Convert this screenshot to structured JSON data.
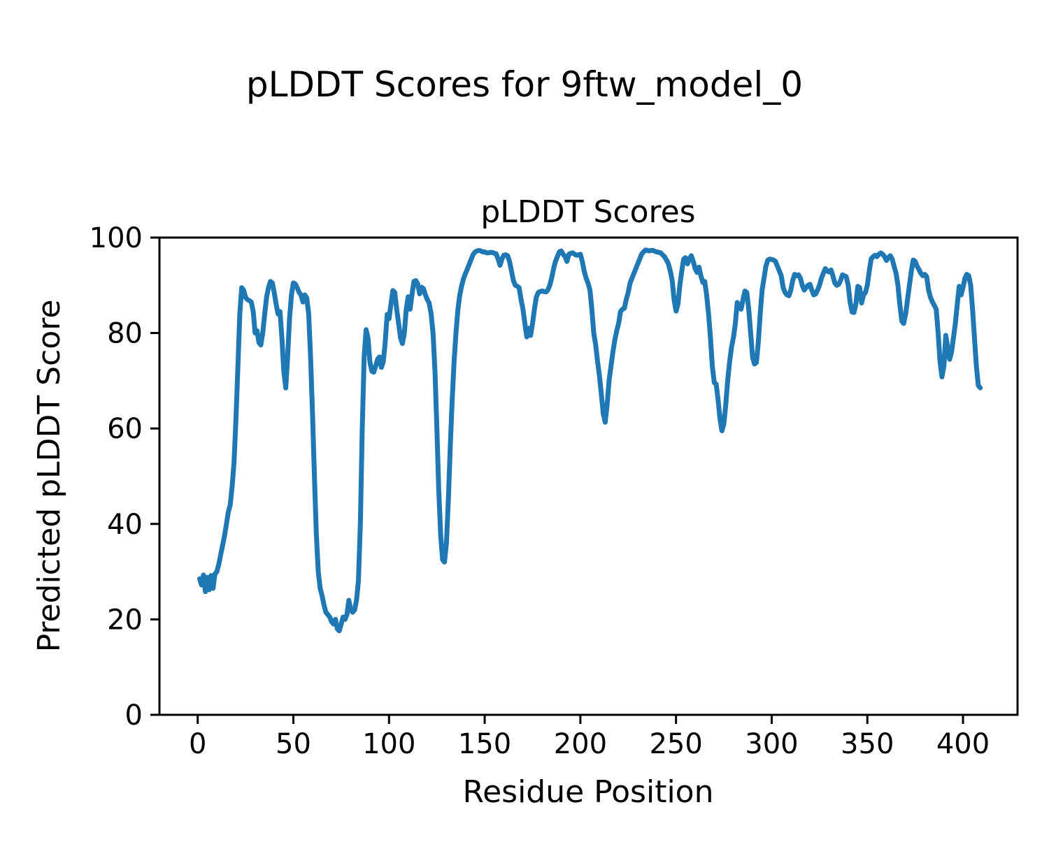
{
  "figure": {
    "title": "pLDDT Scores for 9ftw_model_0"
  },
  "chart_data": {
    "type": "line",
    "title": "pLDDT Scores",
    "xlabel": "Residue Position",
    "ylabel": "Predicted pLDDT Score",
    "xlim": [
      -20,
      428.5
    ],
    "ylim": [
      0,
      100
    ],
    "xticks": [
      0,
      50,
      100,
      150,
      200,
      250,
      300,
      350,
      400
    ],
    "yticks": [
      0,
      20,
      40,
      60,
      80,
      100
    ],
    "grid": false,
    "legend": "none",
    "line_color": "#1f77b4",
    "series": [
      {
        "name": "pLDDT",
        "x_start": 1,
        "x_step": 1,
        "y": [
          28.5,
          27.2,
          29.3,
          25.8,
          28.8,
          26.2,
          29.2,
          26.5,
          29.5,
          30.0,
          31.5,
          33.5,
          35.5,
          37.5,
          40.0,
          42.5,
          44.0,
          48.0,
          53.0,
          62.0,
          73.0,
          84.0,
          89.5,
          89.0,
          87.5,
          87.0,
          86.8,
          86.5,
          84.5,
          80.0,
          80.5,
          78.0,
          77.5,
          80.0,
          84.0,
          87.5,
          89.5,
          90.8,
          90.5,
          88.5,
          86.0,
          84.0,
          84.5,
          79.0,
          72.0,
          68.5,
          75.0,
          83.0,
          88.0,
          90.5,
          90.3,
          89.5,
          88.5,
          88.0,
          86.5,
          88.0,
          87.3,
          84.0,
          75.0,
          63.0,
          50.0,
          38.0,
          30.0,
          26.5,
          25.0,
          23.0,
          21.5,
          21.0,
          20.5,
          19.5,
          19.0,
          20.0,
          18.0,
          17.6,
          19.0,
          20.5,
          20.0,
          21.0,
          24.0,
          22.0,
          21.5,
          22.0,
          24.0,
          28.0,
          40.0,
          60.0,
          75.0,
          80.7,
          79.0,
          74.0,
          72.0,
          71.8,
          73.0,
          74.5,
          75.0,
          72.8,
          74.0,
          78.0,
          83.9,
          83.0,
          86.0,
          88.9,
          88.5,
          85.0,
          82.0,
          79.0,
          77.8,
          80.0,
          85.0,
          87.6,
          85.0,
          88.0,
          90.8,
          91.0,
          90.3,
          88.2,
          89.6,
          89.3,
          88.0,
          87.0,
          86.3,
          84.0,
          80.0,
          72.0,
          60.0,
          47.0,
          37.5,
          32.5,
          32.0,
          36.0,
          45.0,
          56.0,
          66.0,
          74.0,
          80.0,
          85.0,
          88.0,
          90.0,
          91.5,
          92.5,
          93.5,
          94.5,
          95.5,
          96.5,
          97.0,
          97.2,
          97.3,
          97.2,
          97.0,
          97.0,
          96.8,
          96.8,
          96.9,
          96.9,
          96.7,
          96.6,
          95.5,
          94.2,
          95.5,
          96.3,
          96.4,
          96.2,
          95.0,
          93.0,
          91.0,
          90.0,
          89.8,
          89.5,
          87.0,
          85.0,
          82.0,
          79.2,
          81.0,
          79.5,
          82.0,
          85.0,
          87.5,
          88.5,
          88.7,
          88.8,
          88.7,
          88.6,
          89.0,
          90.0,
          91.5,
          93.5,
          95.0,
          96.0,
          97.0,
          97.2,
          96.5,
          96.0,
          95.0,
          96.5,
          96.7,
          96.8,
          96.5,
          96.3,
          96.4,
          96.5,
          95.0,
          93.0,
          91.5,
          90.5,
          89.0,
          85.0,
          80.0,
          77.5,
          74.0,
          71.0,
          67.0,
          63.0,
          61.3,
          65.0,
          70.0,
          73.0,
          76.0,
          78.5,
          80.5,
          82.0,
          84.5,
          85.0,
          85.2,
          87.0,
          88.5,
          90.5,
          91.5,
          92.5,
          93.5,
          94.5,
          95.5,
          96.5,
          97.0,
          97.4,
          97.3,
          97.2,
          97.3,
          97.3,
          97.1,
          97.0,
          96.9,
          96.8,
          96.4,
          96.0,
          95.3,
          94.5,
          93.0,
          91.0,
          87.0,
          84.6,
          86.0,
          90.0,
          93.0,
          95.5,
          95.8,
          94.5,
          95.5,
          96.2,
          95.0,
          93.5,
          92.7,
          93.8,
          92.0,
          90.6,
          90.8,
          88.0,
          84.0,
          79.0,
          73.0,
          69.6,
          69.3,
          66.0,
          62.0,
          59.5,
          61.0,
          65.0,
          70.0,
          74.0,
          77.0,
          79.0,
          82.0,
          86.4,
          85.8,
          85.0,
          87.0,
          88.8,
          88.5,
          85.0,
          80.0,
          75.0,
          73.5,
          73.8,
          78.0,
          84.0,
          89.0,
          91.5,
          94.0,
          95.3,
          95.5,
          95.4,
          95.3,
          95.0,
          94.0,
          93.0,
          92.0,
          89.5,
          88.5,
          88.0,
          87.8,
          89.0,
          91.0,
          92.3,
          92.0,
          92.2,
          91.5,
          90.0,
          89.0,
          89.5,
          90.0,
          90.2,
          89.0,
          88.0,
          88.2,
          89.0,
          90.0,
          91.5,
          92.5,
          93.5,
          93.0,
          92.8,
          93.2,
          92.0,
          90.5,
          90.0,
          90.2,
          91.0,
          92.2,
          92.0,
          91.8,
          90.0,
          86.5,
          84.4,
          84.3,
          86.0,
          89.8,
          89.5,
          86.3,
          88.0,
          88.5,
          90.0,
          93.0,
          95.5,
          96.0,
          96.3,
          96.0,
          96.5,
          96.8,
          96.5,
          96.0,
          95.2,
          95.8,
          96.2,
          95.5,
          94.0,
          92.5,
          90.0,
          86.0,
          82.5,
          82.0,
          84.0,
          87.0,
          90.0,
          93.0,
          95.3,
          95.0,
          94.0,
          93.3,
          92.5,
          92.0,
          92.3,
          91.8,
          89.0,
          87.5,
          86.5,
          85.8,
          85.0,
          80.0,
          74.0,
          70.8,
          73.0,
          79.5,
          77.0,
          74.5,
          76.0,
          79.0,
          82.0,
          86.0,
          89.8,
          88.0,
          89.5,
          91.5,
          92.3,
          92.0,
          90.0,
          85.0,
          79.0,
          73.0,
          69.0,
          68.5
        ]
      }
    ]
  }
}
